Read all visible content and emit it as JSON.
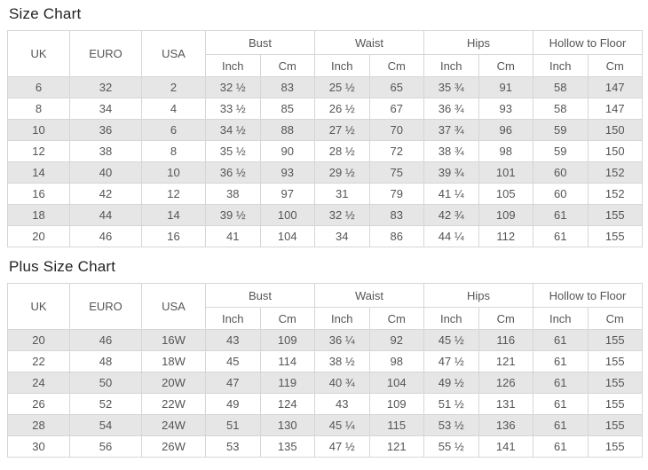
{
  "colors": {
    "stripe": "#e6e6e6",
    "border": "#d6d6d6",
    "text": "#555555",
    "title": "#222222"
  },
  "chart_data": [
    {
      "type": "table",
      "title": "Size Chart",
      "size_columns": [
        "UK",
        "EURO",
        "USA"
      ],
      "header_groups": [
        "Bust",
        "Waist",
        "Hips",
        "Hollow to Floor"
      ],
      "unit_labels": [
        "Inch",
        "Cm"
      ],
      "rows": [
        [
          "6",
          "32",
          "2",
          "32 ½",
          "83",
          "25 ½",
          "65",
          "35 ¾",
          "91",
          "58",
          "147"
        ],
        [
          "8",
          "34",
          "4",
          "33 ½",
          "85",
          "26 ½",
          "67",
          "36 ¾",
          "93",
          "58",
          "147"
        ],
        [
          "10",
          "36",
          "6",
          "34 ½",
          "88",
          "27 ½",
          "70",
          "37 ¾",
          "96",
          "59",
          "150"
        ],
        [
          "12",
          "38",
          "8",
          "35 ½",
          "90",
          "28 ½",
          "72",
          "38 ¾",
          "98",
          "59",
          "150"
        ],
        [
          "14",
          "40",
          "10",
          "36 ½",
          "93",
          "29 ½",
          "75",
          "39 ¾",
          "101",
          "60",
          "152"
        ],
        [
          "16",
          "42",
          "12",
          "38",
          "97",
          "31",
          "79",
          "41 ¼",
          "105",
          "60",
          "152"
        ],
        [
          "18",
          "44",
          "14",
          "39 ½",
          "100",
          "32 ½",
          "83",
          "42 ¾",
          "109",
          "61",
          "155"
        ],
        [
          "20",
          "46",
          "16",
          "41",
          "104",
          "34",
          "86",
          "44 ¼",
          "112",
          "61",
          "155"
        ]
      ]
    },
    {
      "type": "table",
      "title": "Plus Size Chart",
      "size_columns": [
        "UK",
        "EURO",
        "USA"
      ],
      "header_groups": [
        "Bust",
        "Waist",
        "Hips",
        "Hollow to Floor"
      ],
      "unit_labels": [
        "Inch",
        "Cm"
      ],
      "rows": [
        [
          "20",
          "46",
          "16W",
          "43",
          "109",
          "36 ¼",
          "92",
          "45 ½",
          "116",
          "61",
          "155"
        ],
        [
          "22",
          "48",
          "18W",
          "45",
          "114",
          "38 ½",
          "98",
          "47 ½",
          "121",
          "61",
          "155"
        ],
        [
          "24",
          "50",
          "20W",
          "47",
          "119",
          "40 ¾",
          "104",
          "49 ½",
          "126",
          "61",
          "155"
        ],
        [
          "26",
          "52",
          "22W",
          "49",
          "124",
          "43",
          "109",
          "51 ½",
          "131",
          "61",
          "155"
        ],
        [
          "28",
          "54",
          "24W",
          "51",
          "130",
          "45 ¼",
          "115",
          "53 ½",
          "136",
          "61",
          "155"
        ],
        [
          "30",
          "56",
          "26W",
          "53",
          "135",
          "47 ½",
          "121",
          "55 ½",
          "141",
          "61",
          "155"
        ]
      ]
    }
  ]
}
